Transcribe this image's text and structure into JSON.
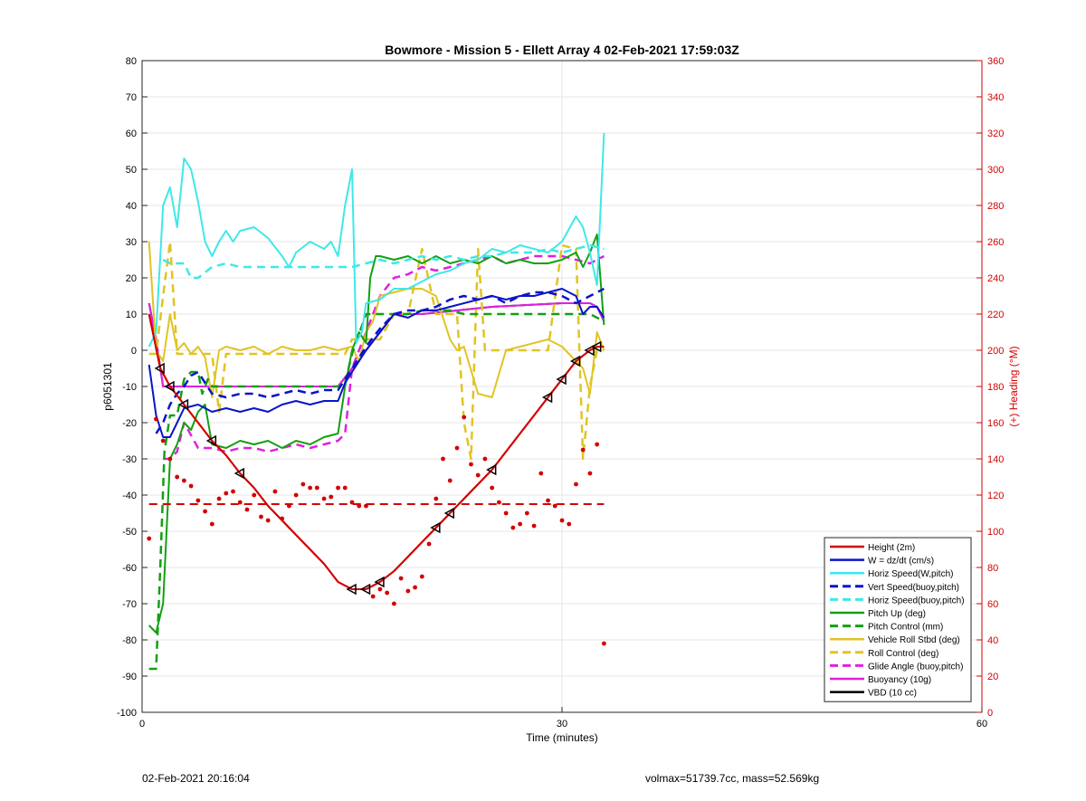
{
  "footer": {
    "timestamp": "02-Feb-2021 20:16:04",
    "info": "volmax=51739.7cc, mass=52.569kg"
  },
  "colors": {
    "red": "#d40000",
    "blue": "#0a14c8",
    "cyan": "#3ee8e8",
    "green": "#12a012",
    "yellow": "#e0c424",
    "magenta": "#e020e0",
    "black": "#000000",
    "grid": "#e6e6e6",
    "right_axis": "#d40000"
  },
  "chart_data": {
    "type": "line",
    "title": "Bowmore - Mission 5 - Ellett Array 4 02-Feb-2021 17:59:03Z",
    "xlabel": "Time (minutes)",
    "ylabel": "p6051301",
    "ylabel_right": "(+) Heading (°M)",
    "xlim": [
      0,
      60
    ],
    "ylim": [
      -100,
      80
    ],
    "ylim_right": [
      0,
      360
    ],
    "xticks": [
      0,
      30,
      60
    ],
    "yticks": [
      -100,
      -90,
      -80,
      -70,
      -60,
      -50,
      -40,
      -30,
      -20,
      -10,
      0,
      10,
      20,
      30,
      40,
      50,
      60,
      70,
      80
    ],
    "yticks_right": [
      0,
      20,
      40,
      60,
      80,
      100,
      120,
      140,
      160,
      180,
      200,
      220,
      240,
      260,
      280,
      300,
      320,
      340,
      360
    ],
    "grid": "x-lines-and-y-lines",
    "legend_position": "bottom-right",
    "series": [
      {
        "name": "Height (2m)",
        "color": "red",
        "style": "solid",
        "width": 2,
        "markers": "triangle",
        "x": [
          0.5,
          1.3,
          2,
          3,
          4,
          5,
          6,
          7,
          8,
          9,
          10,
          11,
          12,
          13,
          14,
          15,
          16,
          17,
          18,
          19,
          20,
          21,
          22,
          23,
          24,
          25,
          26,
          27,
          28,
          29,
          30,
          31,
          32,
          32.5,
          33
        ],
        "y": [
          10,
          -5,
          -10,
          -15,
          -20,
          -25,
          -29,
          -34,
          -38,
          -43,
          -47,
          -51,
          -55,
          -59,
          -64,
          -66,
          -66,
          -64,
          -61,
          -57,
          -53,
          -49,
          -45,
          -41,
          -37,
          -33,
          -28,
          -23,
          -18,
          -13,
          -8,
          -3,
          0,
          1,
          1
        ]
      },
      {
        "name": "W = dz/dt (cm/s)",
        "color": "blue",
        "style": "solid",
        "width": 2,
        "x": [
          0.5,
          1,
          1.5,
          2,
          2.5,
          3,
          4,
          5,
          6,
          7,
          8,
          9,
          10,
          11,
          12,
          13,
          14,
          14.5,
          15,
          16,
          17,
          18,
          19,
          20,
          21,
          22,
          23,
          24,
          25,
          26,
          27,
          28,
          29,
          30,
          31,
          31.5,
          32,
          32.5,
          33
        ],
        "y": [
          -4,
          -18,
          -24,
          -24,
          -20,
          -16,
          -15,
          -17,
          -16,
          -17,
          -16,
          -17,
          -15,
          -14,
          -15,
          -14,
          -14,
          -9,
          -6,
          0,
          5,
          10,
          9,
          11,
          11,
          12,
          13,
          14,
          15,
          14,
          15,
          15,
          16,
          17,
          15,
          10,
          12,
          12,
          9
        ]
      },
      {
        "name": "Horiz Speed(W,pitch)",
        "color": "cyan",
        "style": "solid",
        "width": 2,
        "x": [
          0.5,
          1,
          1.5,
          2,
          2.5,
          3,
          3.5,
          4,
          4.5,
          5,
          5.5,
          6,
          6.5,
          7,
          8,
          9,
          10,
          10.5,
          11,
          12,
          13,
          13.5,
          14,
          14.5,
          15,
          15.3,
          15.7,
          16,
          17,
          18,
          19,
          20,
          21,
          22,
          23,
          24,
          25,
          26,
          27,
          28,
          29,
          30,
          31,
          31.5,
          32,
          32.5,
          33
        ],
        "y": [
          1,
          5,
          40,
          45,
          34,
          53,
          50,
          41,
          30,
          26,
          30,
          33,
          30,
          33,
          34,
          31,
          26,
          23,
          27,
          30,
          28,
          30,
          26,
          40,
          50,
          2,
          5,
          13,
          14,
          17,
          17,
          19,
          21,
          22,
          24,
          25,
          28,
          27,
          29,
          28,
          27,
          30,
          37,
          34,
          27,
          18,
          60
        ]
      },
      {
        "name": "Vert Speed(buoy,pitch)",
        "color": "blue",
        "style": "dashed",
        "width": 2.5,
        "x": [
          1,
          1.5,
          2,
          2.5,
          3,
          3.5,
          4,
          5,
          6,
          7,
          8,
          9,
          10,
          11,
          12,
          13,
          14,
          14.5,
          15,
          16,
          17,
          18,
          19,
          20,
          21,
          22,
          23,
          24,
          25,
          26,
          27,
          28,
          29,
          30,
          31,
          32,
          33
        ],
        "y": [
          -23,
          -20,
          -15,
          -12,
          -10,
          -7,
          -6,
          -12,
          -13,
          -12,
          -12,
          -13,
          -12,
          -11,
          -12,
          -11,
          -11,
          -8,
          -5,
          1,
          6,
          10,
          11,
          11,
          12,
          14,
          15,
          14,
          15,
          13,
          15,
          16,
          16,
          15,
          13,
          15,
          17
        ]
      },
      {
        "name": "Horiz Speed(buoy,pitch)",
        "color": "cyan",
        "style": "dashed",
        "width": 2.5,
        "x": [
          1.5,
          2,
          3,
          3.5,
          4,
          5,
          6,
          7,
          8,
          9,
          10,
          11,
          12,
          13,
          14,
          15,
          16,
          17,
          18,
          19,
          20,
          21,
          22,
          23,
          24,
          25,
          26,
          27,
          28,
          29,
          30,
          31,
          32,
          33
        ],
        "y": [
          25,
          24,
          24,
          20,
          20,
          23,
          24,
          23,
          23,
          23,
          23,
          23,
          23,
          23,
          23,
          23,
          24,
          25,
          24,
          25,
          26,
          25,
          26,
          25,
          26,
          26,
          27,
          27,
          27,
          28,
          27,
          28,
          29,
          28
        ]
      },
      {
        "name": "Pitch Up (deg)",
        "color": "green",
        "style": "solid",
        "width": 2,
        "x": [
          0.5,
          1,
          1.5,
          2,
          2.5,
          3,
          3.5,
          4,
          4.5,
          5,
          6,
          7,
          8,
          9,
          10,
          11,
          12,
          13,
          14,
          14.5,
          15,
          15.5,
          16,
          16.3,
          16.7,
          17,
          18,
          19,
          20,
          21,
          22,
          23,
          24,
          25,
          26,
          27,
          28,
          29,
          30,
          31,
          31.5,
          32,
          32.5,
          33
        ],
        "y": [
          -76,
          -78,
          -70,
          -30,
          -26,
          -20,
          -22,
          -17,
          -15,
          -26,
          -27,
          -25,
          -26,
          -25,
          -27,
          -25,
          -26,
          -24,
          -23,
          -10,
          0,
          5,
          2,
          20,
          26,
          26,
          25,
          26,
          24,
          26,
          24,
          25,
          24,
          26,
          24,
          25,
          24,
          24,
          25,
          27,
          23,
          27,
          32,
          7
        ]
      },
      {
        "name": "Pitch Control (mm)",
        "color": "green",
        "style": "dashed",
        "width": 2.5,
        "x": [
          0.5,
          1,
          1.3,
          1.6,
          2,
          2.5,
          3,
          3.5,
          4,
          4.3,
          4.7,
          5,
          5.5,
          6,
          7,
          8,
          9,
          10,
          11,
          12,
          13,
          14,
          14.5,
          15,
          16,
          17,
          17.5,
          18,
          19,
          20,
          21,
          22,
          23,
          24,
          25,
          26,
          27,
          28,
          29,
          30,
          31,
          32,
          33
        ],
        "y": [
          -88,
          -88,
          -60,
          -28,
          -18,
          -18,
          -8,
          -6,
          -6,
          -12,
          -8,
          -10,
          -10,
          -10,
          -10,
          -10,
          -10,
          -10,
          -10,
          -10,
          -10,
          -10,
          -9,
          -1,
          10,
          10,
          10,
          10,
          10,
          11,
          11,
          11,
          10,
          10,
          10,
          10,
          10,
          10,
          10,
          10,
          10,
          10,
          8
        ]
      },
      {
        "name": "Vehicle Roll Stbd (deg)",
        "color": "yellow",
        "style": "solid",
        "width": 2,
        "x": [
          0.5,
          1,
          1.5,
          2,
          2.5,
          3,
          3.5,
          4,
          4.5,
          5,
          5.5,
          6,
          7,
          8,
          9,
          10,
          11,
          12,
          13,
          14,
          15,
          15.5,
          16,
          16.5,
          17,
          18,
          19,
          20,
          21,
          22,
          22.5,
          23,
          24,
          25,
          26,
          27,
          28,
          29,
          30,
          31,
          31.5,
          32,
          32.5,
          33
        ],
        "y": [
          30,
          0,
          -3,
          10,
          0,
          2,
          -1,
          1,
          -2,
          -13,
          0,
          1,
          0,
          1,
          -1,
          1,
          0,
          0,
          1,
          0,
          1,
          -3,
          5,
          8,
          15,
          16,
          17,
          17,
          15,
          3,
          0,
          1,
          -12,
          -13,
          0,
          1,
          2,
          3,
          1,
          -3,
          -5,
          -12,
          5,
          0
        ]
      },
      {
        "name": "Roll Control (deg)",
        "color": "yellow",
        "style": "dashed",
        "width": 2.5,
        "x": [
          0.5,
          1,
          1.5,
          2,
          2.5,
          3,
          4,
          5,
          5.5,
          6,
          7,
          8,
          9,
          10,
          11,
          12,
          13,
          14,
          14.5,
          15,
          15.5,
          16,
          17,
          18,
          19,
          20,
          21,
          22,
          22.5,
          23,
          23.5,
          24,
          24.5,
          25,
          26,
          27,
          28,
          29,
          30,
          31,
          31.5,
          32,
          32.5,
          33
        ],
        "y": [
          -1,
          -1,
          15,
          30,
          -1,
          -1,
          -1,
          -1,
          -17,
          -1,
          -1,
          -1,
          -1,
          -1,
          -1,
          -1,
          -1,
          -1,
          -1,
          3,
          3,
          3,
          3,
          10,
          10,
          28,
          10,
          10,
          10,
          -20,
          -30,
          28,
          0,
          0,
          0,
          0,
          0,
          0,
          29,
          28,
          -30,
          -10,
          0,
          0
        ]
      },
      {
        "name": "Glide Angle (buoy,pitch)",
        "color": "magenta",
        "style": "dashed",
        "width": 2.5,
        "x": [
          1.5,
          2,
          2.5,
          3,
          4,
          5,
          6,
          7,
          8,
          9,
          10,
          11,
          12,
          13,
          14,
          14.5,
          15,
          16,
          17,
          18,
          19,
          20,
          21,
          22,
          23,
          24,
          25,
          26,
          27,
          28,
          29,
          30,
          31,
          32,
          33
        ],
        "y": [
          -30,
          -30,
          -28,
          -20,
          -27,
          -27,
          -28,
          -27,
          -27,
          -28,
          -27,
          -26,
          -27,
          -26,
          -25,
          -23,
          -5,
          5,
          15,
          20,
          21,
          23,
          22,
          23,
          24,
          25,
          26,
          24,
          25,
          26,
          26,
          26,
          25,
          24,
          26
        ]
      },
      {
        "name": "Buoyancy (10g)",
        "color": "magenta",
        "style": "solid",
        "width": 2,
        "x": [
          0.5,
          1,
          1.5,
          2,
          14,
          15,
          16,
          17,
          18,
          20,
          25,
          30,
          32,
          32.5,
          33
        ],
        "y": [
          13,
          3,
          -10,
          -10,
          -10,
          -5,
          0,
          5,
          10,
          10,
          12,
          13,
          13,
          12,
          8
        ]
      },
      {
        "name": "VBD (10 cc)",
        "color": "black",
        "style": "solid",
        "width": 2,
        "x": [
          0.5,
          1,
          1.5,
          2,
          14,
          15,
          16,
          17,
          18,
          20,
          25,
          30,
          32,
          32.5,
          33
        ],
        "y": [
          13,
          3,
          -10,
          -10,
          -10,
          -5,
          0,
          5,
          10,
          10,
          12,
          13,
          13,
          12,
          8
        ]
      }
    ],
    "heading_target": {
      "color": "red",
      "style": "dashed",
      "value_right": 115,
      "x": [
        0.5,
        33
      ]
    },
    "heading_points": {
      "color": "red",
      "axis": "right",
      "x": [
        0.5,
        1,
        1.5,
        2,
        2.5,
        3,
        3.5,
        4,
        4.5,
        5,
        5.5,
        6,
        6.5,
        7,
        7.5,
        8,
        8.5,
        9,
        9.5,
        10,
        10.5,
        11,
        11.5,
        12,
        12.5,
        13,
        13.5,
        14,
        14.5,
        15,
        15.5,
        16,
        16.5,
        17,
        17.5,
        18,
        18.5,
        19,
        19.5,
        20,
        20.5,
        21,
        21.5,
        22,
        22.5,
        23,
        23.5,
        24,
        24.5,
        25,
        25.5,
        26,
        26.5,
        27,
        27.5,
        28,
        28.5,
        29,
        29.5,
        30,
        30.5,
        31,
        31.5,
        32,
        32.5,
        33
      ],
      "y": [
        96,
        162,
        150,
        140,
        130,
        128,
        125,
        117,
        111,
        104,
        118,
        121,
        122,
        116,
        112,
        120,
        108,
        106,
        122,
        107,
        114,
        120,
        126,
        124,
        124,
        118,
        119,
        124,
        124,
        116,
        114,
        114,
        64,
        68,
        66,
        60,
        74,
        67,
        69,
        75,
        93,
        118,
        140,
        128,
        146,
        163,
        137,
        131,
        140,
        124,
        116,
        110,
        102,
        104,
        110,
        103,
        132,
        117,
        114,
        106,
        104,
        126,
        145,
        132,
        148,
        38
      ]
    },
    "annotations": []
  }
}
